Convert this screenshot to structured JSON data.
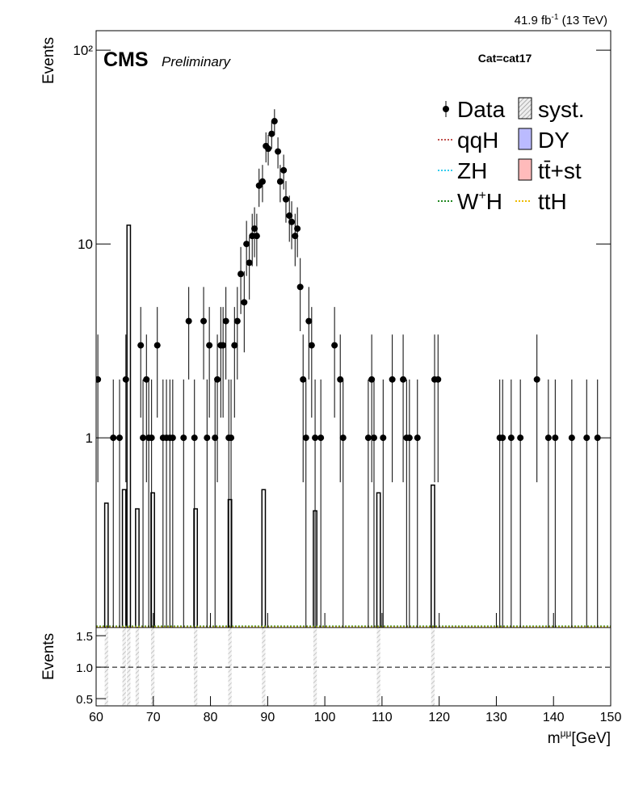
{
  "chart_data": {
    "type": "hep",
    "lumi": {
      "main": "41.9 fb",
      "sup": "-1",
      "tail": " (13 TeV)"
    },
    "experiment": "CMS",
    "status": "Preliminary",
    "category": "Cat=cat17",
    "y_label": "Events",
    "ratio_y_label": "Events",
    "x_label": {
      "main": "m",
      "sup": "μμ",
      "tail": "[GeV]"
    },
    "xlim": [
      60,
      150
    ],
    "xticks": [
      60,
      70,
      80,
      90,
      100,
      110,
      120,
      130,
      140,
      150
    ],
    "ylim": [
      0.105,
      126
    ],
    "yticks": [
      1,
      10,
      {
        "value": 100,
        "label": "10²"
      }
    ],
    "log_y": true,
    "ratio_ylim": [
      0.385,
      1.63
    ],
    "ratio_yticks": [
      0.5,
      {
        "value": 1,
        "label": "1.0"
      },
      1.5
    ],
    "data": {
      "name": "Data",
      "color": "#000000",
      "x": [
        60.3,
        63.0,
        64.1,
        65.2,
        67.8,
        68.2,
        68.8,
        69.2,
        69.7,
        70.7,
        71.7,
        72.3,
        72.9,
        73.4,
        75.3,
        76.2,
        77.2,
        78.8,
        79.4,
        79.8,
        80.8,
        81.2,
        81.8,
        82.2,
        82.7,
        83.2,
        83.6,
        84.2,
        84.7,
        85.3,
        85.9,
        86.3,
        86.8,
        87.3,
        87.7,
        88.1,
        88.5,
        89.1,
        89.7,
        90.1,
        90.7,
        91.2,
        91.8,
        92.2,
        92.8,
        93.2,
        93.8,
        94.2,
        94.8,
        95.2,
        95.7,
        96.2,
        96.7,
        97.2,
        97.7,
        98.3,
        99.3,
        101.7,
        102.7,
        103.2,
        107.6,
        108.2,
        108.6,
        110.2,
        111.8,
        113.7,
        114.3,
        114.8,
        116.2,
        119.2,
        119.8,
        130.6,
        131.1,
        132.6,
        134.2,
        137.1,
        139.1,
        140.3,
        143.2,
        145.8,
        147.7
      ],
      "values": [
        2,
        1,
        1,
        2,
        3,
        1,
        2,
        1,
        1,
        3,
        1,
        1,
        1,
        1,
        1,
        4,
        1,
        4,
        1,
        3,
        1,
        2,
        3,
        3,
        4,
        1,
        1,
        3,
        4,
        7,
        5,
        10,
        8,
        11,
        12,
        11,
        20,
        21,
        32,
        31,
        37,
        43,
        30,
        21,
        24,
        17,
        14,
        13,
        11,
        12,
        6,
        2,
        1,
        4,
        3,
        1,
        1,
        3,
        2,
        1,
        1,
        2,
        1,
        1,
        2,
        2,
        1,
        1,
        1,
        2,
        2,
        1,
        1,
        1,
        1,
        2,
        1,
        1,
        1,
        1,
        1
      ],
      "errors": [
        1.41,
        1,
        1,
        1.41,
        1.73,
        1,
        1.41,
        1,
        1,
        1.73,
        1,
        1,
        1,
        1,
        1,
        2,
        1,
        2,
        1,
        1.73,
        1,
        1.41,
        1.73,
        1.73,
        2,
        1,
        1,
        1.73,
        2,
        2.65,
        2.24,
        3.16,
        2.83,
        3.32,
        3.46,
        3.32,
        4.47,
        4.58,
        5.66,
        5.57,
        6.08,
        6.56,
        5.48,
        4.58,
        4.9,
        4.12,
        3.74,
        3.61,
        3.32,
        3.46,
        2.45,
        1.41,
        1,
        2,
        1.73,
        1,
        1,
        1.73,
        1.41,
        1,
        1,
        1.41,
        1,
        1,
        1.41,
        1.41,
        1,
        1,
        1,
        1.41,
        1.41,
        1,
        1,
        1,
        1,
        1.41,
        1,
        1,
        1,
        1,
        1
      ]
    },
    "hist": {
      "x": [
        61.8,
        64.9,
        65.7,
        67.2,
        69.9,
        77.4,
        83.4,
        89.3,
        98.3,
        109.4,
        118.9
      ],
      "values": [
        0.46,
        0.54,
        12.5,
        0.43,
        0.52,
        0.43,
        0.48,
        0.54,
        0.42,
        0.52,
        0.57
      ]
    },
    "legend": [
      {
        "label": "Data",
        "kind": "point",
        "color": "#000000"
      },
      {
        "label": "syst.",
        "kind": "hatch",
        "color": "#999999"
      },
      {
        "label": "qqH",
        "kind": "dotted",
        "color": "#c0504d"
      },
      {
        "label": "DY",
        "kind": "box",
        "color": "#bbbbff"
      },
      {
        "label": "ZH",
        "kind": "dotted",
        "color": "#33ccee"
      },
      {
        "label": "tt̄+st",
        "kind": "box",
        "color": "#ffbbbb"
      },
      {
        "label": [
          "W",
          "+",
          "H"
        ],
        "kind": "dotted",
        "color": "#228822"
      },
      {
        "label": "ttH",
        "kind": "dotted",
        "color": "#eebb00"
      }
    ]
  }
}
